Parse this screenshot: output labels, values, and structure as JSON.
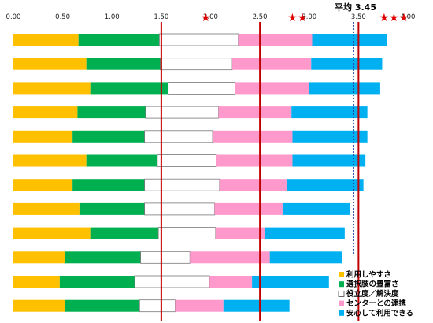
{
  "chart_data": {
    "type": "bar",
    "orientation": "horizontal",
    "stacked": true,
    "xlim": [
      0,
      4.0
    ],
    "ticks": [
      "0.00",
      "0.50",
      "1.00",
      "1.50",
      "2.00",
      "2.50",
      "3.00",
      "3.50",
      "4.00"
    ],
    "tick_values": [
      0,
      0.5,
      1.0,
      1.5,
      2.0,
      2.5,
      3.0,
      3.5,
      4.0
    ],
    "threshold_lines": [
      1.5,
      2.5,
      3.5
    ],
    "star_markers": [
      {
        "value": 1.95,
        "label": "★"
      },
      {
        "value": 2.88,
        "label": "★★"
      },
      {
        "value": 3.86,
        "label": "★★★"
      }
    ],
    "average": {
      "value": 3.45,
      "label": "平均 3.45"
    },
    "legend_position": "bottom-right",
    "colors": [
      "#FFC000",
      "#00B050",
      "#FFFFFF",
      "#FF99CC",
      "#00B0F0"
    ],
    "series": [
      {
        "name": "利用しやすさ",
        "values": [
          0.66,
          0.74,
          0.78,
          0.65,
          0.6,
          0.74,
          0.6,
          0.67,
          0.78,
          0.52,
          0.47,
          0.52
        ]
      },
      {
        "name": "選択肢の豊富さ",
        "values": [
          0.82,
          0.75,
          0.79,
          0.69,
          0.73,
          0.72,
          0.73,
          0.66,
          0.69,
          0.77,
          0.76,
          0.76
        ]
      },
      {
        "name": "役立度／解決度",
        "values": [
          0.8,
          0.73,
          0.68,
          0.74,
          0.69,
          0.6,
          0.76,
          0.71,
          0.58,
          0.5,
          0.76,
          0.36
        ]
      },
      {
        "name": "センターとの連携",
        "values": [
          0.75,
          0.8,
          0.75,
          0.74,
          0.81,
          0.77,
          0.68,
          0.69,
          0.5,
          0.81,
          0.43,
          0.49
        ]
      },
      {
        "name": "安心して利用できる",
        "values": [
          0.76,
          0.72,
          0.72,
          0.77,
          0.76,
          0.74,
          0.78,
          0.68,
          0.81,
          0.73,
          0.78,
          0.67
        ]
      }
    ]
  }
}
